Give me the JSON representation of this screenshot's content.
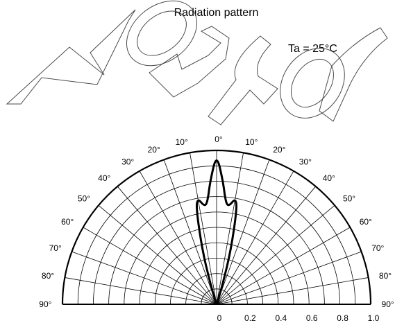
{
  "chart_data": {
    "type": "line",
    "polar": true,
    "title": "Radiation pattern",
    "annotation": "Ta = 25°C",
    "watermark_text": "Not for",
    "angle_ticks_left": [
      "0°",
      "10°",
      "20°",
      "30°",
      "40°",
      "50°",
      "60°",
      "70°",
      "80°",
      "90°"
    ],
    "angle_ticks_right": [
      "10°",
      "20°",
      "30°",
      "40°",
      "50°",
      "60°",
      "70°",
      "80°",
      "90°"
    ],
    "radial_ticks": [
      "0",
      "0.2",
      "0.4",
      "0.6",
      "0.8",
      "1.0"
    ],
    "rlim": [
      0,
      1.0
    ],
    "angle_range_deg": [
      -90,
      90
    ],
    "grid": true,
    "series": [
      {
        "theta_deg": [
          -90,
          -40,
          -30,
          -20,
          -17,
          -15,
          -12,
          -10,
          -7,
          -5,
          -3,
          0,
          3,
          5,
          7,
          10,
          12,
          15,
          17,
          20,
          30,
          40,
          90
        ],
        "r": [
          0.0,
          0.0,
          0.0,
          0.03,
          0.12,
          0.35,
          0.64,
          0.7,
          0.64,
          0.67,
          0.8,
          0.98,
          0.8,
          0.67,
          0.64,
          0.7,
          0.64,
          0.35,
          0.12,
          0.03,
          0.0,
          0.0,
          0.0
        ],
        "color": "#000000"
      }
    ]
  }
}
